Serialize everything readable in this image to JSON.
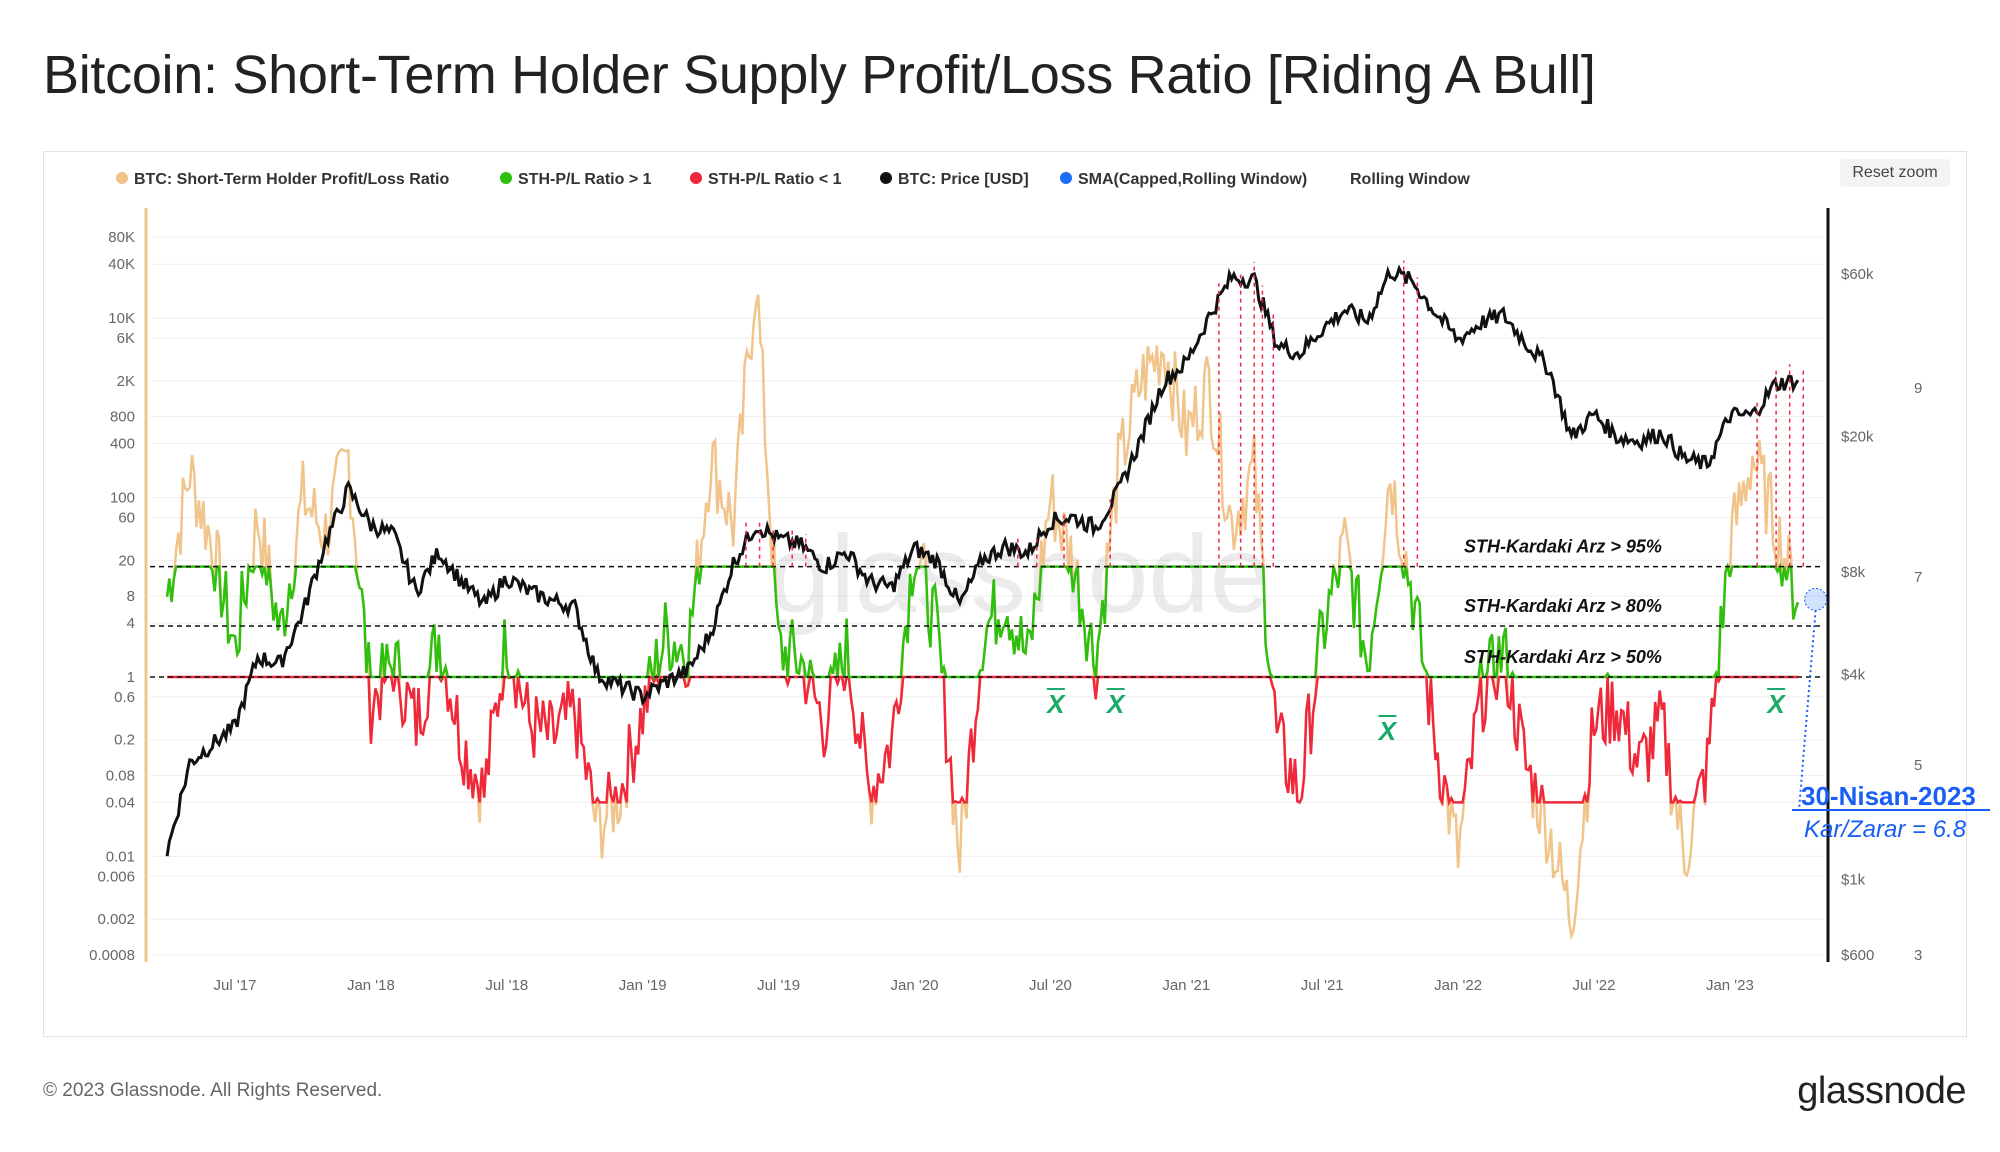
{
  "title": "Bitcoin: Short-Term Holder Supply Profit/Loss Ratio [Riding A Bull]",
  "reset_zoom": "Reset zoom",
  "footer": {
    "copyright": "© 2023 Glassnode. All Rights Reserved.",
    "logo": "glassnode"
  },
  "watermark": "glassnode",
  "colors": {
    "ratio": "#f0c48a",
    "above": "#2fbf0f",
    "below": "#f0283c",
    "price": "#111111",
    "sma": "#1a6ef5",
    "annotation": "#1a5ff5",
    "xbar": "#1aaa6a"
  },
  "chart_data": {
    "type": "line",
    "title": "Bitcoin: Short-Term Holder Supply Profit/Loss Ratio [Riding A Bull]",
    "legend": [
      {
        "label": "BTC: Short-Term Holder Profit/Loss Ratio",
        "color": "#f0c48a"
      },
      {
        "label": "STH-P/L Ratio > 1",
        "color": "#2fbf0f"
      },
      {
        "label": "STH-P/L Ratio < 1",
        "color": "#f0283c"
      },
      {
        "label": "BTC: Price [USD]",
        "color": "#111111"
      },
      {
        "label": "SMA(Capped,Rolling Window)",
        "color": "#1a6ef5",
        "disabled": true
      },
      {
        "label": "Rolling Window",
        "color": null
      }
    ],
    "legend_position": "top",
    "x_ticks": [
      "Jul '17",
      "Jan '18",
      "Jul '18",
      "Jan '19",
      "Jul '19",
      "Jan '20",
      "Jul '20",
      "Jan '21",
      "Jul '21",
      "Jan '22",
      "Jul '22",
      "Jan '23"
    ],
    "x_tick_years": [
      2017.5,
      2018,
      2018.5,
      2019,
      2019.5,
      2020,
      2020.5,
      2021,
      2021.5,
      2022,
      2022.5,
      2023
    ],
    "x_range": [
      2017.25,
      2023.33
    ],
    "y_left": {
      "scale": "log",
      "range": [
        0.0006,
        120000
      ],
      "ticks": [
        80000,
        40000,
        10000,
        6000,
        2000,
        800,
        400,
        100,
        60,
        20,
        8,
        4,
        1,
        0.6,
        0.2,
        0.08,
        0.04,
        0.01,
        0.006,
        0.002,
        0.0008
      ],
      "tick_labels": [
        "80K",
        "40K",
        "10K",
        "6K",
        "2K",
        "800",
        "400",
        "100",
        "60",
        "20",
        "8",
        "4",
        "1",
        "0.6",
        "0.2",
        "0.08",
        "0.04",
        "0.01",
        "0.006",
        "0.002",
        "0.0008"
      ]
    },
    "y_price": {
      "scale": "log",
      "range": [
        600,
        60000
      ],
      "ticks": [
        60000,
        20000,
        8000,
        4000,
        1000,
        600
      ],
      "tick_labels": [
        "$60k",
        "$20k",
        "$8k",
        "$4k",
        "$1k",
        "$600"
      ]
    },
    "y_extra_ticks": [
      "9",
      "7",
      "5",
      "3"
    ],
    "start": 2017.25,
    "step_months": 1,
    "price": [
      1200,
      2200,
      2500,
      2800,
      4500,
      4300,
      6100,
      9800,
      14000,
      11000,
      10300,
      7000,
      9200,
      7500,
      6400,
      7700,
      7000,
      6600,
      6300,
      4000,
      3700,
      3450,
      3800,
      4100,
      5300,
      8500,
      11000,
      10000,
      9600,
      8300,
      9200,
      7500,
      7200,
      9400,
      8600,
      6400,
      8700,
      9500,
      9100,
      11300,
      11600,
      10800,
      13800,
      19700,
      29000,
      33000,
      45000,
      58800,
      57700,
      37300,
      35000,
      41500,
      47100,
      43800,
      61300,
      57000,
      46300,
      38500,
      43200,
      45500,
      37700,
      31800,
      19900,
      23300,
      20000,
      19400,
      20500,
      17200,
      16500,
      23100,
      23100,
      28500,
      29300
    ],
    "ratio": [
      8,
      200,
      30,
      2,
      60,
      3,
      100,
      40,
      300,
      0.5,
      1.5,
      0.3,
      3,
      0.2,
      0.05,
      3,
      0.3,
      0.2,
      0.4,
      0.02,
      0.05,
      0.4,
      3,
      2,
      300,
      50,
      30000,
      2,
      1.5,
      0.3,
      2,
      0.05,
      0.2,
      30,
      3,
      0.01,
      3,
      8,
      1.5,
      100,
      20,
      1.5,
      200,
      2000,
      5000,
      500,
      2000,
      50,
      200,
      0.2,
      0.05,
      3,
      30,
      1.5,
      200,
      8,
      0.2,
      0.01,
      0.6,
      2,
      0.1,
      0.02,
      0.002,
      0.3,
      0.5,
      0.1,
      0.3,
      0.01,
      0.1,
      30,
      300,
      50,
      6.8
    ],
    "caps": {
      "green_max": 17,
      "red_min": 0.04
    },
    "thresholds": [
      {
        "value": 17,
        "label": "STH-Kardaki Arz > 95%"
      },
      {
        "value": 3.7,
        "label": "STH-Kardaki Arz > 80%"
      },
      {
        "value": 1,
        "label": "STH-Kardaki Arz > 50%"
      }
    ],
    "peak_markers": [
      2019.38,
      2019.43,
      2019.48,
      2019.55,
      2019.6,
      2020.1,
      2020.38,
      2020.45,
      2020.55,
      2020.72,
      2021.12,
      2021.2,
      2021.25,
      2021.28,
      2021.32,
      2021.8,
      2021.85,
      2023.1,
      2023.17,
      2023.22,
      2023.27
    ],
    "xbar_markers": {
      "symbol": "X",
      "dates": [
        2020.52,
        2020.74,
        2021.74,
        2023.17
      ]
    },
    "callout": {
      "date": "30-Nisan-2023",
      "text": "Kar/Zarar = 6.8",
      "value": 6.8
    }
  }
}
